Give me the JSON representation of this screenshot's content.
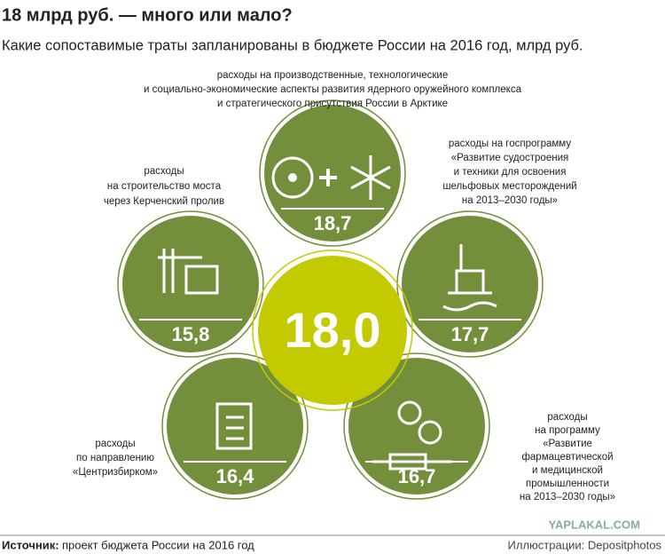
{
  "header": {
    "title": "18 млрд руб. — много или мало?",
    "subtitle": "Какие сопоставимые траты запланированы в бюджете России на 2016 год, млрд руб."
  },
  "center": {
    "value": "18,0"
  },
  "nodes": [
    {
      "label": [
        "расходы на производственные, технологические",
        "и социально-экономические аспекты развития ядерного оружейного комплекса",
        "и стратегического присутствия России в Арктике"
      ],
      "value": "18,7"
    },
    {
      "label": [
        "расходы",
        "на строительство моста",
        "через Керченский пролив"
      ],
      "value": "15,8"
    },
    {
      "label": [
        "расходы на госпрограмму",
        "«Развитие судостроения",
        "и техники для освоения",
        "шельфовых месторождений",
        "на 2013–2030 годы»"
      ],
      "value": "17,7"
    },
    {
      "label": [
        "расходы",
        "по направлению",
        "«Центризбирком»"
      ],
      "value": "16,4"
    },
    {
      "label": [
        "расходы",
        "на программу",
        "«Развитие",
        "фармацевтической",
        "и медицинской",
        "промышленности",
        "на 2013–2030 годы»"
      ],
      "value": "16,7"
    }
  ],
  "footer": {
    "source_label": "Источник:",
    "source": "проект бюджета России на 2016 год",
    "credit": "Иллюстрации: Depositphotos"
  },
  "watermark": "YAPLAKAL.COM"
}
